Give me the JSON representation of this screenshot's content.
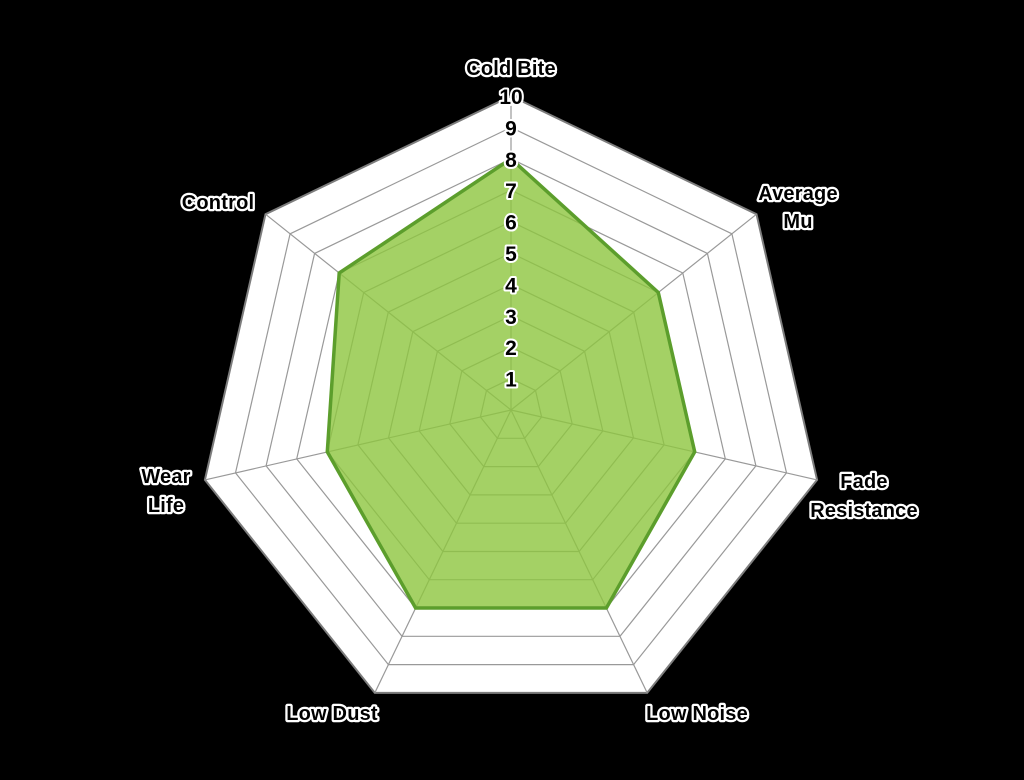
{
  "chart_data": {
    "type": "radar",
    "title": "",
    "axes": [
      {
        "name": "Cold Bite",
        "label_lines": [
          "Cold Bite"
        ],
        "value": 8
      },
      {
        "name": "Average Mu",
        "label_lines": [
          "Average",
          "Mu"
        ],
        "value": 6
      },
      {
        "name": "Fade Resistance",
        "label_lines": [
          "Fade",
          "Resistance"
        ],
        "value": 6
      },
      {
        "name": "Low Noise",
        "label_lines": [
          "Low Noise"
        ],
        "value": 7
      },
      {
        "name": "Low Dust",
        "label_lines": [
          "Low Dust"
        ],
        "value": 7
      },
      {
        "name": "Wear Life",
        "label_lines": [
          "Wear",
          "Life"
        ],
        "value": 6
      },
      {
        "name": "Control",
        "label_lines": [
          "Control"
        ],
        "value": 7
      }
    ],
    "scale": {
      "min": 0,
      "max": 10,
      "tick_labels": [
        "1",
        "2",
        "3",
        "4",
        "5",
        "6",
        "7",
        "8",
        "9",
        "10"
      ]
    },
    "grid": true,
    "legend": "none",
    "colors": {
      "background": "#000000",
      "plot_fill": "#ffffff",
      "grid_line": "#999999",
      "outer_line": "#7d7d7d",
      "series_fill": "#8dc63f",
      "series_fill_opacity": 0.8,
      "series_stroke": "#5c9e2c",
      "text_fill": "#000000",
      "text_outline": "#ffffff"
    }
  }
}
